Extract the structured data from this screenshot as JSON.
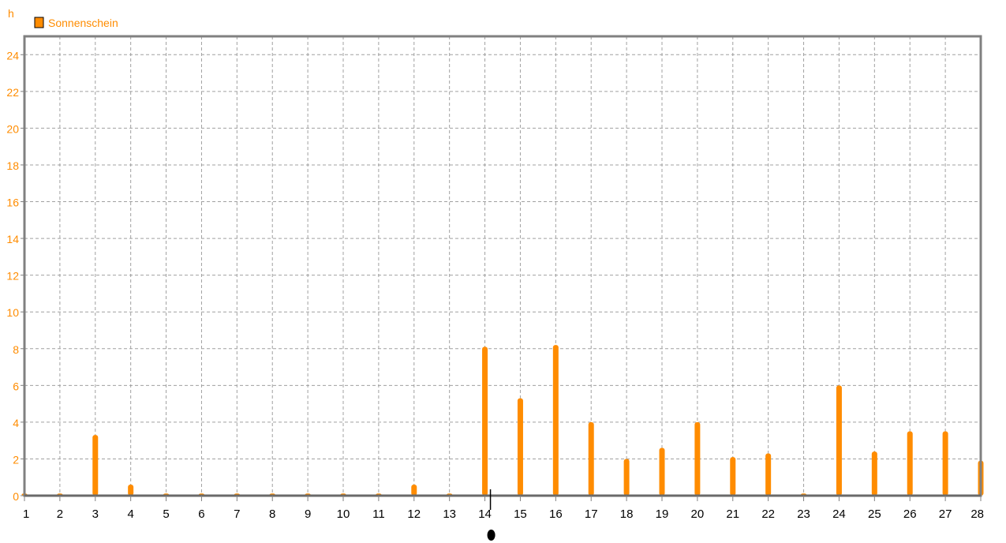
{
  "chart_data": {
    "type": "bar",
    "ylabel": "h",
    "ylim": [
      0,
      25
    ],
    "yticks": [
      0,
      2,
      4,
      6,
      8,
      10,
      12,
      14,
      16,
      18,
      20,
      22,
      24
    ],
    "categories": [
      "1",
      "2",
      "3",
      "4",
      "5",
      "6",
      "7",
      "8",
      "9",
      "10",
      "11",
      "12",
      "13",
      "14",
      "15",
      "16",
      "17",
      "18",
      "19",
      "20",
      "21",
      "22",
      "23",
      "24",
      "25",
      "26",
      "27",
      "28"
    ],
    "series": [
      {
        "name": "Sonnenschein",
        "color": "#ff8c00",
        "values": [
          0,
          0,
          3.3,
          0.6,
          0,
          0,
          0,
          0,
          0,
          0,
          0,
          0.6,
          0,
          8.1,
          5.3,
          8.2,
          4.0,
          2.0,
          2.6,
          4.0,
          2.1,
          2.3,
          0,
          6.0,
          2.4,
          3.5,
          3.5,
          1.9
        ]
      }
    ],
    "grid": true,
    "legend_position": "top-left",
    "current_marker_category": "14"
  }
}
